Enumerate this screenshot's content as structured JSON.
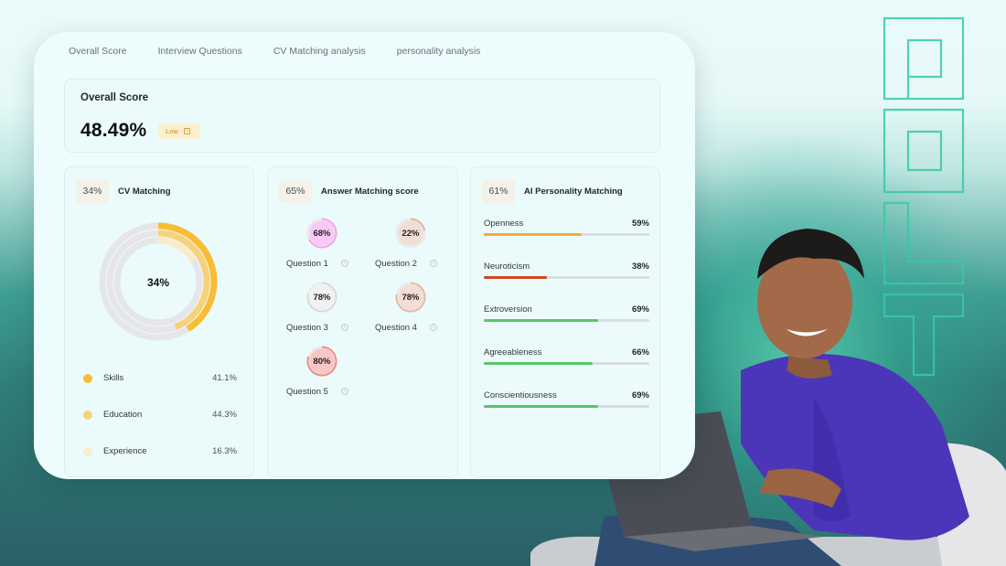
{
  "tabs": [
    "Overall Score",
    "Interview Questions",
    "CV Matching analysis",
    "personality analysis"
  ],
  "overall": {
    "label": "Overall Score",
    "value": "48.49%",
    "badge": "Low"
  },
  "cv_matching": {
    "percent": "34%",
    "title": "CV Matching",
    "center_label": "34%",
    "level": 0.34,
    "legend": [
      {
        "name": "Skills",
        "value": "41.1%",
        "level": 0.411,
        "color": "#f7bd35"
      },
      {
        "name": "Education",
        "value": "44.3%",
        "level": 0.443,
        "color": "#f8d27a"
      },
      {
        "name": "Experience",
        "value": "16.3%",
        "level": 0.163,
        "color": "#fcebc8"
      }
    ]
  },
  "answer_matching": {
    "percent": "65%",
    "title": "Answer Matching score",
    "questions": [
      {
        "label": "Question 1",
        "value": "68%",
        "level": 0.68,
        "color": "#f0a6e6",
        "fill": "#fbc8f5"
      },
      {
        "label": "Question 2",
        "value": "22%",
        "level": 0.22,
        "color": "#e2b3a1",
        "fill": "#f2ddd4"
      },
      {
        "label": "Question 3",
        "value": "78%",
        "level": 0.78,
        "color": "#d9d9d9",
        "fill": "#f1f1f1"
      },
      {
        "label": "Question 4",
        "value": "78%",
        "level": 0.78,
        "color": "#e6b7a8",
        "fill": "#f3ddd4"
      },
      {
        "label": "Question 5",
        "value": "80%",
        "level": 0.8,
        "color": "#ef8c86",
        "fill": "#f8c7c3"
      }
    ]
  },
  "personality": {
    "percent": "61%",
    "title": "AI Personality Matching",
    "traits": [
      {
        "name": "Openness",
        "value": "59%",
        "level": 0.59,
        "color": "#f4a93a"
      },
      {
        "name": "Neuroticism",
        "value": "38%",
        "level": 0.38,
        "color": "#d2451e"
      },
      {
        "name": "Extroversion",
        "value": "69%",
        "level": 0.69,
        "color": "#5cc46a"
      },
      {
        "name": "Agreeableness",
        "value": "66%",
        "level": 0.66,
        "color": "#5cc46a"
      },
      {
        "name": "Conscientiousness",
        "value": "69%",
        "level": 0.69,
        "color": "#5cc46a"
      }
    ]
  },
  "colors": {
    "accent": "#f7bd35",
    "card_bg": "#edfdfd",
    "shirt": "#4b35b8"
  },
  "icons": [
    "info-icon"
  ]
}
